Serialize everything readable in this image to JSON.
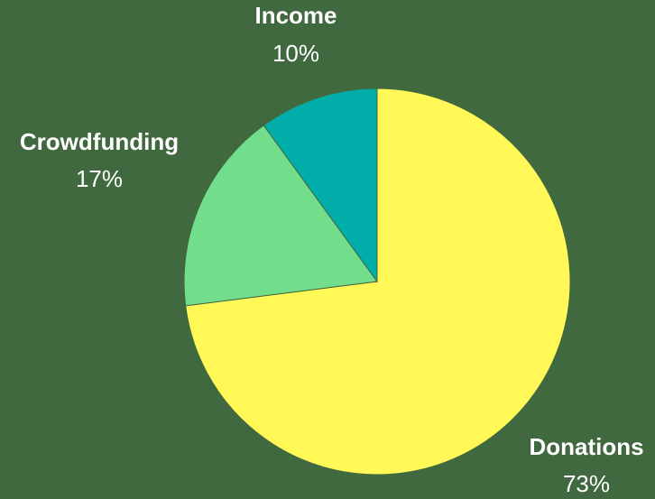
{
  "colors": {
    "background": "#41693F",
    "slice_stroke": "#41693F"
  },
  "chart_data": {
    "type": "pie",
    "start_angle_deg": 0,
    "direction": "clockwise",
    "slices": [
      {
        "label": "Donations",
        "value": 73,
        "display": "73%",
        "color": "#FFF857"
      },
      {
        "label": "Crowdfunding",
        "value": 17,
        "display": "17%",
        "color": "#72DE8C"
      },
      {
        "label": "Income",
        "value": 10,
        "display": "10%",
        "color": "#00ADA9"
      }
    ]
  }
}
